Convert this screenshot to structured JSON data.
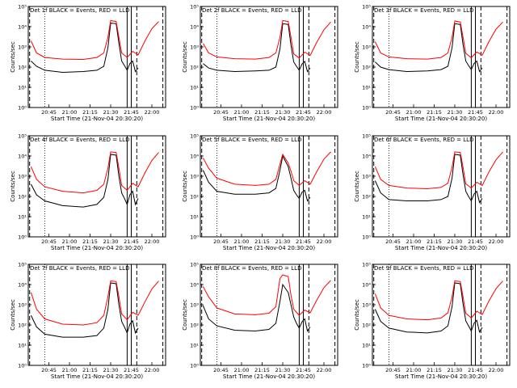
{
  "figure": {
    "x_label": "Start Time (21-Nov-04 20:30:20)",
    "y_label": "Counts/sec",
    "x_tick_labels": [
      "20:45",
      "21:00",
      "21:15",
      "21:30",
      "21:45",
      "22:00"
    ],
    "y_tick_labels": [
      "10⁰",
      "10¹",
      "10²",
      "10³",
      "10⁴",
      "10⁵"
    ],
    "colors": {
      "events": "#000000",
      "lld": "#ff0000",
      "background": "#ffffff"
    }
  },
  "chart_data": [
    {
      "type": "line",
      "title": "Det 1f BLACK = Events, RED = LLD",
      "xlabel": "Start Time (21-Nov-04 20:30:20)",
      "ylabel": "Counts/sec",
      "yscale": "log",
      "ylim": [
        1,
        100000
      ],
      "x_ticks": [
        "20:45",
        "21:00",
        "21:15",
        "21:30",
        "21:45",
        "22:00"
      ],
      "series": [
        {
          "name": "BLACK = Events",
          "color": "#000000",
          "x": [
            "20:32",
            "20:36",
            "20:42",
            "20:55",
            "21:10",
            "21:20",
            "21:25",
            "21:28",
            "21:30",
            "21:34",
            "21:36",
            "21:38",
            "21:40",
            "21:42",
            "21:44",
            "21:46",
            "21:48",
            "21:50"
          ],
          "y": [
            200,
            110,
            70,
            55,
            60,
            70,
            110,
            900,
            15000,
            14000,
            1500,
            200,
            120,
            70,
            150,
            200,
            60,
            90
          ]
        },
        {
          "name": "RED = LLD",
          "color": "#ff0000",
          "x": [
            "20:32",
            "20:36",
            "20:42",
            "20:55",
            "21:10",
            "21:20",
            "21:25",
            "21:28",
            "21:30",
            "21:34",
            "21:36",
            "21:38",
            "21:42",
            "21:46",
            "21:50",
            "21:55",
            "22:00",
            "22:05"
          ],
          "y": [
            2000,
            500,
            300,
            250,
            240,
            300,
            500,
            3000,
            20000,
            18000,
            3000,
            500,
            300,
            600,
            400,
            2000,
            8000,
            18000
          ]
        }
      ]
    },
    {
      "type": "line",
      "title": "Det 2f BLACK = Events, RED = LLD",
      "xlabel": "Start Time (21-Nov-04 20:30:20)",
      "ylabel": "Counts/sec",
      "yscale": "log",
      "ylim": [
        1,
        100000
      ],
      "x_ticks": [
        "20:45",
        "21:00",
        "21:15",
        "21:30",
        "21:45",
        "22:00"
      ],
      "series": [
        {
          "name": "BLACK = Events",
          "color": "#000000",
          "x": [
            "20:32",
            "20:36",
            "20:42",
            "20:55",
            "21:10",
            "21:20",
            "21:25",
            "21:28",
            "21:30",
            "21:34",
            "21:36",
            "21:38",
            "21:40",
            "21:42",
            "21:44",
            "21:46",
            "21:48",
            "21:50"
          ],
          "y": [
            150,
            90,
            70,
            60,
            65,
            70,
            100,
            800,
            14000,
            13000,
            1200,
            180,
            110,
            70,
            140,
            190,
            60,
            90
          ]
        },
        {
          "name": "RED = LLD",
          "color": "#ff0000",
          "x": [
            "20:32",
            "20:36",
            "20:42",
            "20:55",
            "21:10",
            "21:20",
            "21:25",
            "21:28",
            "21:30",
            "21:34",
            "21:36",
            "21:38",
            "21:42",
            "21:46",
            "21:50",
            "21:55",
            "22:00",
            "22:05"
          ],
          "y": [
            1500,
            500,
            320,
            260,
            250,
            300,
            500,
            3000,
            20000,
            18000,
            3000,
            450,
            280,
            550,
            380,
            1800,
            7000,
            17000
          ]
        }
      ]
    },
    {
      "type": "line",
      "title": "Det 3f BLACK = Events, RED = LLD",
      "xlabel": "Start Time (21-Nov-04 20:30:20)",
      "ylabel": "Counts/sec",
      "yscale": "log",
      "ylim": [
        1,
        100000
      ],
      "x_ticks": [
        "20:45",
        "21:00",
        "21:15",
        "21:30",
        "21:45",
        "22:00"
      ],
      "series": [
        {
          "name": "BLACK = Events",
          "color": "#000000",
          "x": [
            "20:32",
            "20:36",
            "20:42",
            "20:55",
            "21:10",
            "21:20",
            "21:25",
            "21:28",
            "21:30",
            "21:34",
            "21:36",
            "21:38",
            "21:40",
            "21:42",
            "21:44",
            "21:46",
            "21:48",
            "21:50"
          ],
          "y": [
            180,
            100,
            75,
            60,
            65,
            75,
            110,
            900,
            14000,
            13000,
            1300,
            200,
            120,
            75,
            150,
            200,
            60,
            90
          ]
        },
        {
          "name": "RED = LLD",
          "color": "#ff0000",
          "x": [
            "20:32",
            "20:36",
            "20:42",
            "20:55",
            "21:10",
            "21:20",
            "21:25",
            "21:28",
            "21:30",
            "21:34",
            "21:36",
            "21:38",
            "21:42",
            "21:46",
            "21:50",
            "21:55",
            "22:00",
            "22:05"
          ],
          "y": [
            1800,
            500,
            320,
            260,
            250,
            300,
            500,
            3000,
            19000,
            17000,
            3000,
            480,
            290,
            560,
            390,
            1900,
            7500,
            17000
          ]
        }
      ]
    },
    {
      "type": "line",
      "title": "Det 4f BLACK = Events, RED = LLD",
      "xlabel": "Start Time (21-Nov-04 20:30:20)",
      "ylabel": "Counts/sec",
      "yscale": "log",
      "ylim": [
        1,
        100000
      ],
      "x_ticks": [
        "20:45",
        "21:00",
        "21:15",
        "21:30",
        "21:45",
        "22:00"
      ],
      "series": [
        {
          "name": "BLACK = Events",
          "color": "#000000",
          "x": [
            "20:32",
            "20:36",
            "20:42",
            "20:55",
            "21:10",
            "21:20",
            "21:25",
            "21:28",
            "21:30",
            "21:34",
            "21:36",
            "21:38",
            "21:40",
            "21:42",
            "21:44",
            "21:46",
            "21:48",
            "21:50"
          ],
          "y": [
            400,
            120,
            60,
            35,
            30,
            40,
            90,
            700,
            12000,
            11000,
            1000,
            150,
            80,
            40,
            120,
            180,
            40,
            80
          ]
        },
        {
          "name": "RED = LLD",
          "color": "#ff0000",
          "x": [
            "20:32",
            "20:36",
            "20:42",
            "20:55",
            "21:10",
            "21:20",
            "21:25",
            "21:28",
            "21:30",
            "21:34",
            "21:36",
            "21:38",
            "21:42",
            "21:46",
            "21:50",
            "21:55",
            "22:00",
            "22:05"
          ],
          "y": [
            3000,
            700,
            300,
            180,
            150,
            200,
            400,
            2500,
            16000,
            15000,
            2500,
            350,
            200,
            450,
            300,
            1500,
            6000,
            15000
          ]
        }
      ]
    },
    {
      "type": "line",
      "title": "Det 5f BLACK = Events, RED = LLD",
      "xlabel": "Start Time (21-Nov-04 20:30:20)",
      "ylabel": "Counts/sec",
      "yscale": "log",
      "ylim": [
        1,
        100000
      ],
      "x_ticks": [
        "20:45",
        "21:00",
        "21:15",
        "21:30",
        "21:45",
        "22:00"
      ],
      "series": [
        {
          "name": "BLACK = Events",
          "color": "#000000",
          "x": [
            "20:32",
            "20:36",
            "20:42",
            "20:55",
            "21:10",
            "21:20",
            "21:25",
            "21:28",
            "21:30",
            "21:34",
            "21:36",
            "21:38",
            "21:40",
            "21:42",
            "21:44",
            "21:46",
            "21:48",
            "21:50"
          ],
          "y": [
            2000,
            500,
            180,
            130,
            130,
            150,
            250,
            2000,
            10000,
            3000,
            800,
            200,
            120,
            80,
            160,
            200,
            60,
            90
          ]
        },
        {
          "name": "RED = LLD",
          "color": "#ff0000",
          "x": [
            "20:32",
            "20:36",
            "20:42",
            "20:55",
            "21:10",
            "21:20",
            "21:25",
            "21:28",
            "21:30",
            "21:34",
            "21:36",
            "21:38",
            "21:42",
            "21:46",
            "21:50",
            "21:55",
            "22:00",
            "22:05"
          ],
          "y": [
            8000,
            2500,
            800,
            400,
            350,
            400,
            700,
            4000,
            12000,
            4500,
            1800,
            600,
            350,
            600,
            400,
            1800,
            7000,
            16000
          ]
        }
      ]
    },
    {
      "type": "line",
      "title": "Det 6f BLACK = Events, RED = LLD",
      "xlabel": "Start Time (21-Nov-04 20:30:20)",
      "ylabel": "Counts/sec",
      "yscale": "log",
      "ylim": [
        1,
        100000
      ],
      "x_ticks": [
        "20:45",
        "21:00",
        "21:15",
        "21:30",
        "21:45",
        "22:00"
      ],
      "series": [
        {
          "name": "BLACK = Events",
          "color": "#000000",
          "x": [
            "20:32",
            "20:36",
            "20:42",
            "20:55",
            "21:10",
            "21:20",
            "21:25",
            "21:28",
            "21:30",
            "21:34",
            "21:36",
            "21:38",
            "21:40",
            "21:42",
            "21:44",
            "21:46",
            "21:48",
            "21:50"
          ],
          "y": [
            600,
            150,
            70,
            60,
            60,
            70,
            100,
            800,
            12000,
            11000,
            1200,
            180,
            100,
            60,
            130,
            180,
            50,
            80
          ]
        },
        {
          "name": "RED = LLD",
          "color": "#ff0000",
          "x": [
            "20:32",
            "20:36",
            "20:42",
            "20:55",
            "21:10",
            "21:20",
            "21:25",
            "21:28",
            "21:30",
            "21:34",
            "21:36",
            "21:38",
            "21:42",
            "21:46",
            "21:50",
            "21:55",
            "22:00",
            "22:05"
          ],
          "y": [
            3000,
            700,
            350,
            260,
            240,
            280,
            450,
            2800,
            16000,
            15000,
            2800,
            420,
            260,
            500,
            350,
            1700,
            6500,
            16000
          ]
        }
      ]
    },
    {
      "type": "line",
      "title": "Det 7f BLACK = Events, RED = LLD",
      "xlabel": "Start Time (21-Nov-04 20:30:20)",
      "ylabel": "Counts/sec",
      "yscale": "log",
      "ylim": [
        1,
        100000
      ],
      "x_ticks": [
        "20:45",
        "21:00",
        "21:15",
        "21:30",
        "21:45",
        "22:00"
      ],
      "series": [
        {
          "name": "BLACK = Events",
          "color": "#000000",
          "x": [
            "20:32",
            "20:36",
            "20:42",
            "20:55",
            "21:10",
            "21:20",
            "21:25",
            "21:28",
            "21:30",
            "21:34",
            "21:36",
            "21:38",
            "21:40",
            "21:42",
            "21:44",
            "21:46",
            "21:48",
            "21:50"
          ],
          "y": [
            300,
            80,
            35,
            25,
            25,
            30,
            70,
            600,
            12000,
            11000,
            1000,
            150,
            80,
            40,
            110,
            160,
            40,
            70
          ]
        },
        {
          "name": "RED = LLD",
          "color": "#ff0000",
          "x": [
            "20:32",
            "20:36",
            "20:42",
            "20:55",
            "21:10",
            "21:20",
            "21:25",
            "21:28",
            "21:30",
            "21:34",
            "21:36",
            "21:38",
            "21:42",
            "21:46",
            "21:50",
            "21:55",
            "22:00",
            "22:05"
          ],
          "y": [
            4000,
            600,
            200,
            110,
            100,
            130,
            300,
            2500,
            15000,
            14000,
            2500,
            350,
            180,
            420,
            300,
            1400,
            6000,
            15000
          ]
        }
      ]
    },
    {
      "type": "line",
      "title": "Det 8f BLACK = Events, RED = LLD",
      "xlabel": "Start Time (21-Nov-04 20:30:20)",
      "ylabel": "Counts/sec",
      "yscale": "log",
      "ylim": [
        1,
        100000
      ],
      "x_ticks": [
        "20:45",
        "21:00",
        "21:15",
        "21:30",
        "21:45",
        "22:00"
      ],
      "series": [
        {
          "name": "BLACK = Events",
          "color": "#000000",
          "x": [
            "20:32",
            "20:36",
            "20:42",
            "20:55",
            "21:10",
            "21:20",
            "21:25",
            "21:28",
            "21:30",
            "21:34",
            "21:36",
            "21:38",
            "21:40",
            "21:42",
            "21:44",
            "21:46",
            "21:48",
            "21:50"
          ],
          "y": [
            900,
            200,
            90,
            55,
            50,
            60,
            120,
            1500,
            10000,
            4000,
            1000,
            250,
            120,
            70,
            140,
            200,
            50,
            80
          ]
        },
        {
          "name": "RED = LLD",
          "color": "#ff0000",
          "x": [
            "20:32",
            "20:36",
            "20:42",
            "20:55",
            "21:10",
            "21:20",
            "21:25",
            "21:28",
            "21:30",
            "21:34",
            "21:36",
            "21:38",
            "21:42",
            "21:46",
            "21:50",
            "21:55",
            "22:00",
            "22:05"
          ],
          "y": [
            8000,
            2500,
            700,
            350,
            320,
            380,
            800,
            20000,
            30000,
            25000,
            3000,
            600,
            300,
            550,
            400,
            1800,
            7000,
            16000
          ]
        }
      ]
    },
    {
      "type": "line",
      "title": "Det 9f BLACK = Events, RED = LLD",
      "xlabel": "Start Time (21-Nov-04 20:30:20)",
      "ylabel": "Counts/sec",
      "yscale": "log",
      "ylim": [
        1,
        100000
      ],
      "x_ticks": [
        "20:45",
        "21:00",
        "21:15",
        "21:30",
        "21:45",
        "22:00"
      ],
      "series": [
        {
          "name": "BLACK = Events",
          "color": "#000000",
          "x": [
            "20:32",
            "20:36",
            "20:42",
            "20:55",
            "21:10",
            "21:20",
            "21:25",
            "21:28",
            "21:30",
            "21:34",
            "21:36",
            "21:38",
            "21:40",
            "21:42",
            "21:44",
            "21:46",
            "21:48",
            "21:50"
          ],
          "y": [
            600,
            150,
            70,
            45,
            40,
            50,
            90,
            800,
            12000,
            11000,
            1100,
            160,
            90,
            50,
            120,
            170,
            45,
            75
          ]
        },
        {
          "name": "RED = LLD",
          "color": "#ff0000",
          "x": [
            "20:32",
            "20:36",
            "20:42",
            "20:55",
            "21:10",
            "21:20",
            "21:25",
            "21:28",
            "21:30",
            "21:34",
            "21:36",
            "21:38",
            "21:42",
            "21:46",
            "21:50",
            "21:55",
            "22:00",
            "22:05"
          ],
          "y": [
            3500,
            700,
            300,
            200,
            180,
            220,
            400,
            2500,
            15000,
            14000,
            2500,
            380,
            220,
            480,
            330,
            1600,
            6200,
            15000
          ]
        }
      ]
    }
  ]
}
